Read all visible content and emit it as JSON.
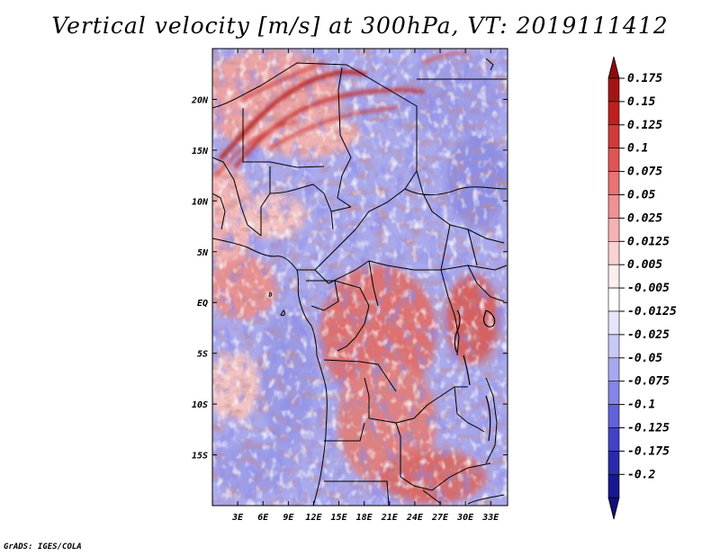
{
  "title": "Vertical velocity [m/s] at 300hPa, VT: 2019111412",
  "credit": "GrADS: IGES/COLA",
  "map": {
    "projection": "latlon",
    "lon_range": [
      0,
      35
    ],
    "lat_range": [
      -20,
      25
    ],
    "lon_ticks": [
      {
        "value": 3,
        "label": "3E"
      },
      {
        "value": 6,
        "label": "6E"
      },
      {
        "value": 9,
        "label": "9E"
      },
      {
        "value": 12,
        "label": "12E"
      },
      {
        "value": 15,
        "label": "15E"
      },
      {
        "value": 18,
        "label": "18E"
      },
      {
        "value": 21,
        "label": "21E"
      },
      {
        "value": 24,
        "label": "24E"
      },
      {
        "value": 27,
        "label": "27E"
      },
      {
        "value": 30,
        "label": "30E"
      },
      {
        "value": 33,
        "label": "33E"
      }
    ],
    "lat_ticks": [
      {
        "value": 20,
        "label": "20N"
      },
      {
        "value": 15,
        "label": "15N"
      },
      {
        "value": 10,
        "label": "10N"
      },
      {
        "value": 5,
        "label": "5N"
      },
      {
        "value": 0,
        "label": "EQ"
      },
      {
        "value": -5,
        "label": "5S"
      },
      {
        "value": -10,
        "label": "10S"
      },
      {
        "value": -15,
        "label": "15S"
      }
    ]
  },
  "colorbar": {
    "levels": [
      {
        "label": "0.175",
        "color": "#a51414"
      },
      {
        "label": "0.15",
        "color": "#bf1f1f"
      },
      {
        "label": "0.125",
        "color": "#d23a3a"
      },
      {
        "label": "0.1",
        "color": "#e05555"
      },
      {
        "label": "0.075",
        "color": "#ea7373"
      },
      {
        "label": "0.05",
        "color": "#f19191"
      },
      {
        "label": "0.025",
        "color": "#f6b2b2"
      },
      {
        "label": "0.0125",
        "color": "#fad2d2"
      },
      {
        "label": "0.005",
        "color": "#fdeded"
      },
      {
        "label": "-0.005",
        "color": "#ffffff"
      },
      {
        "label": "-0.0125",
        "color": "#e6e6fb"
      },
      {
        "label": "-0.025",
        "color": "#c9c9f6"
      },
      {
        "label": "-0.05",
        "color": "#a8a8f0"
      },
      {
        "label": "-0.075",
        "color": "#8585e6"
      },
      {
        "label": "-0.1",
        "color": "#6161da"
      },
      {
        "label": "-0.125",
        "color": "#4242c6"
      },
      {
        "label": "-0.175",
        "color": "#2a2aad"
      },
      {
        "label": "-0.2",
        "color": "#171792"
      }
    ],
    "top_cap_color": "#8e0b0b",
    "bottom_cap_color": "#0f0f78"
  }
}
